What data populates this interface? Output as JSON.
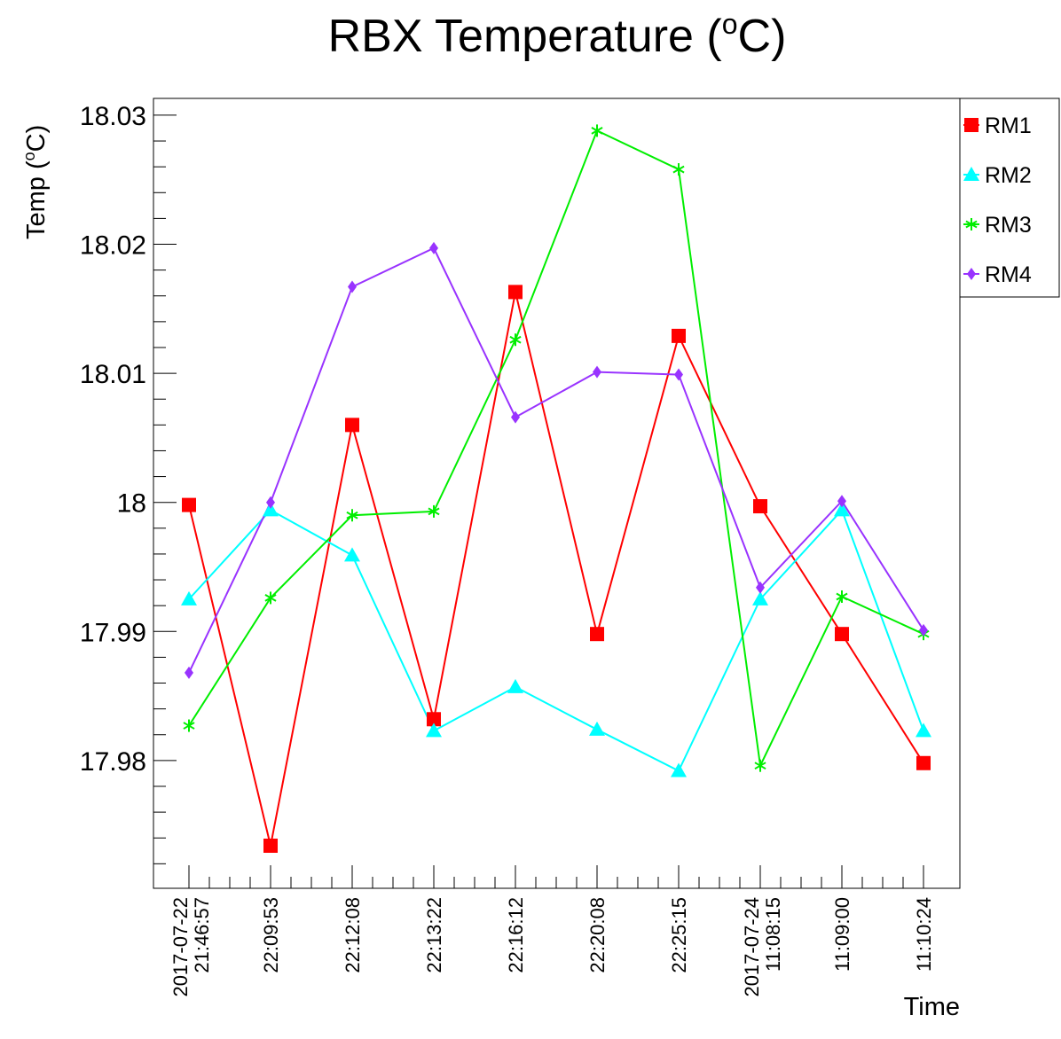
{
  "chart_data": {
    "type": "line",
    "title": "RBX Temperature (",
    "title_sup": "o",
    "title_end": "C)",
    "xlabel": "Time",
    "ylabel": "Temp (",
    "ylabel_sup": "o",
    "ylabel_end": "C)",
    "ylim": [
      17.9701,
      18.0313
    ],
    "y_ticks": [
      "17.98",
      "17.99",
      "18",
      "18.01",
      "18.02",
      "18.03"
    ],
    "x_ticks": [
      {
        "date": "2017-07-22",
        "time": "21:46:57"
      },
      {
        "date": "",
        "time": "22:09:53"
      },
      {
        "date": "",
        "time": "22:12:08"
      },
      {
        "date": "",
        "time": "22:13:22"
      },
      {
        "date": "",
        "time": "22:16:12"
      },
      {
        "date": "",
        "time": "22:20:08"
      },
      {
        "date": "",
        "time": "22:25:15"
      },
      {
        "date": "2017-07-24",
        "time": "11:08:15"
      },
      {
        "date": "",
        "time": "11:09:00"
      },
      {
        "date": "",
        "time": "11:10:24"
      }
    ],
    "legend_position": "top-right",
    "grid": false,
    "series": [
      {
        "name": "RM1",
        "color": "#ff0000",
        "marker": "square",
        "values": [
          17.9998,
          17.9734,
          18.006,
          17.9832,
          18.0163,
          17.9898,
          18.0129,
          17.9997,
          17.9898,
          17.9798
        ]
      },
      {
        "name": "RM2",
        "color": "#00ffff",
        "marker": "triangle",
        "values": [
          17.9925,
          17.9994,
          17.9959,
          17.9823,
          17.9857,
          17.9824,
          17.9792,
          17.9925,
          17.9994,
          17.9823
        ]
      },
      {
        "name": "RM3",
        "color": "#00ee00",
        "marker": "star",
        "values": [
          17.9827,
          17.9926,
          17.999,
          17.9993,
          18.0126,
          18.0288,
          18.0258,
          17.9796,
          17.9927,
          17.9898
        ]
      },
      {
        "name": "RM4",
        "color": "#9933ff",
        "marker": "diamond",
        "values": [
          17.9868,
          18.0,
          18.0167,
          18.0197,
          18.0066,
          18.0101,
          18.0099,
          17.9934,
          18.0001,
          17.9901
        ]
      }
    ]
  }
}
